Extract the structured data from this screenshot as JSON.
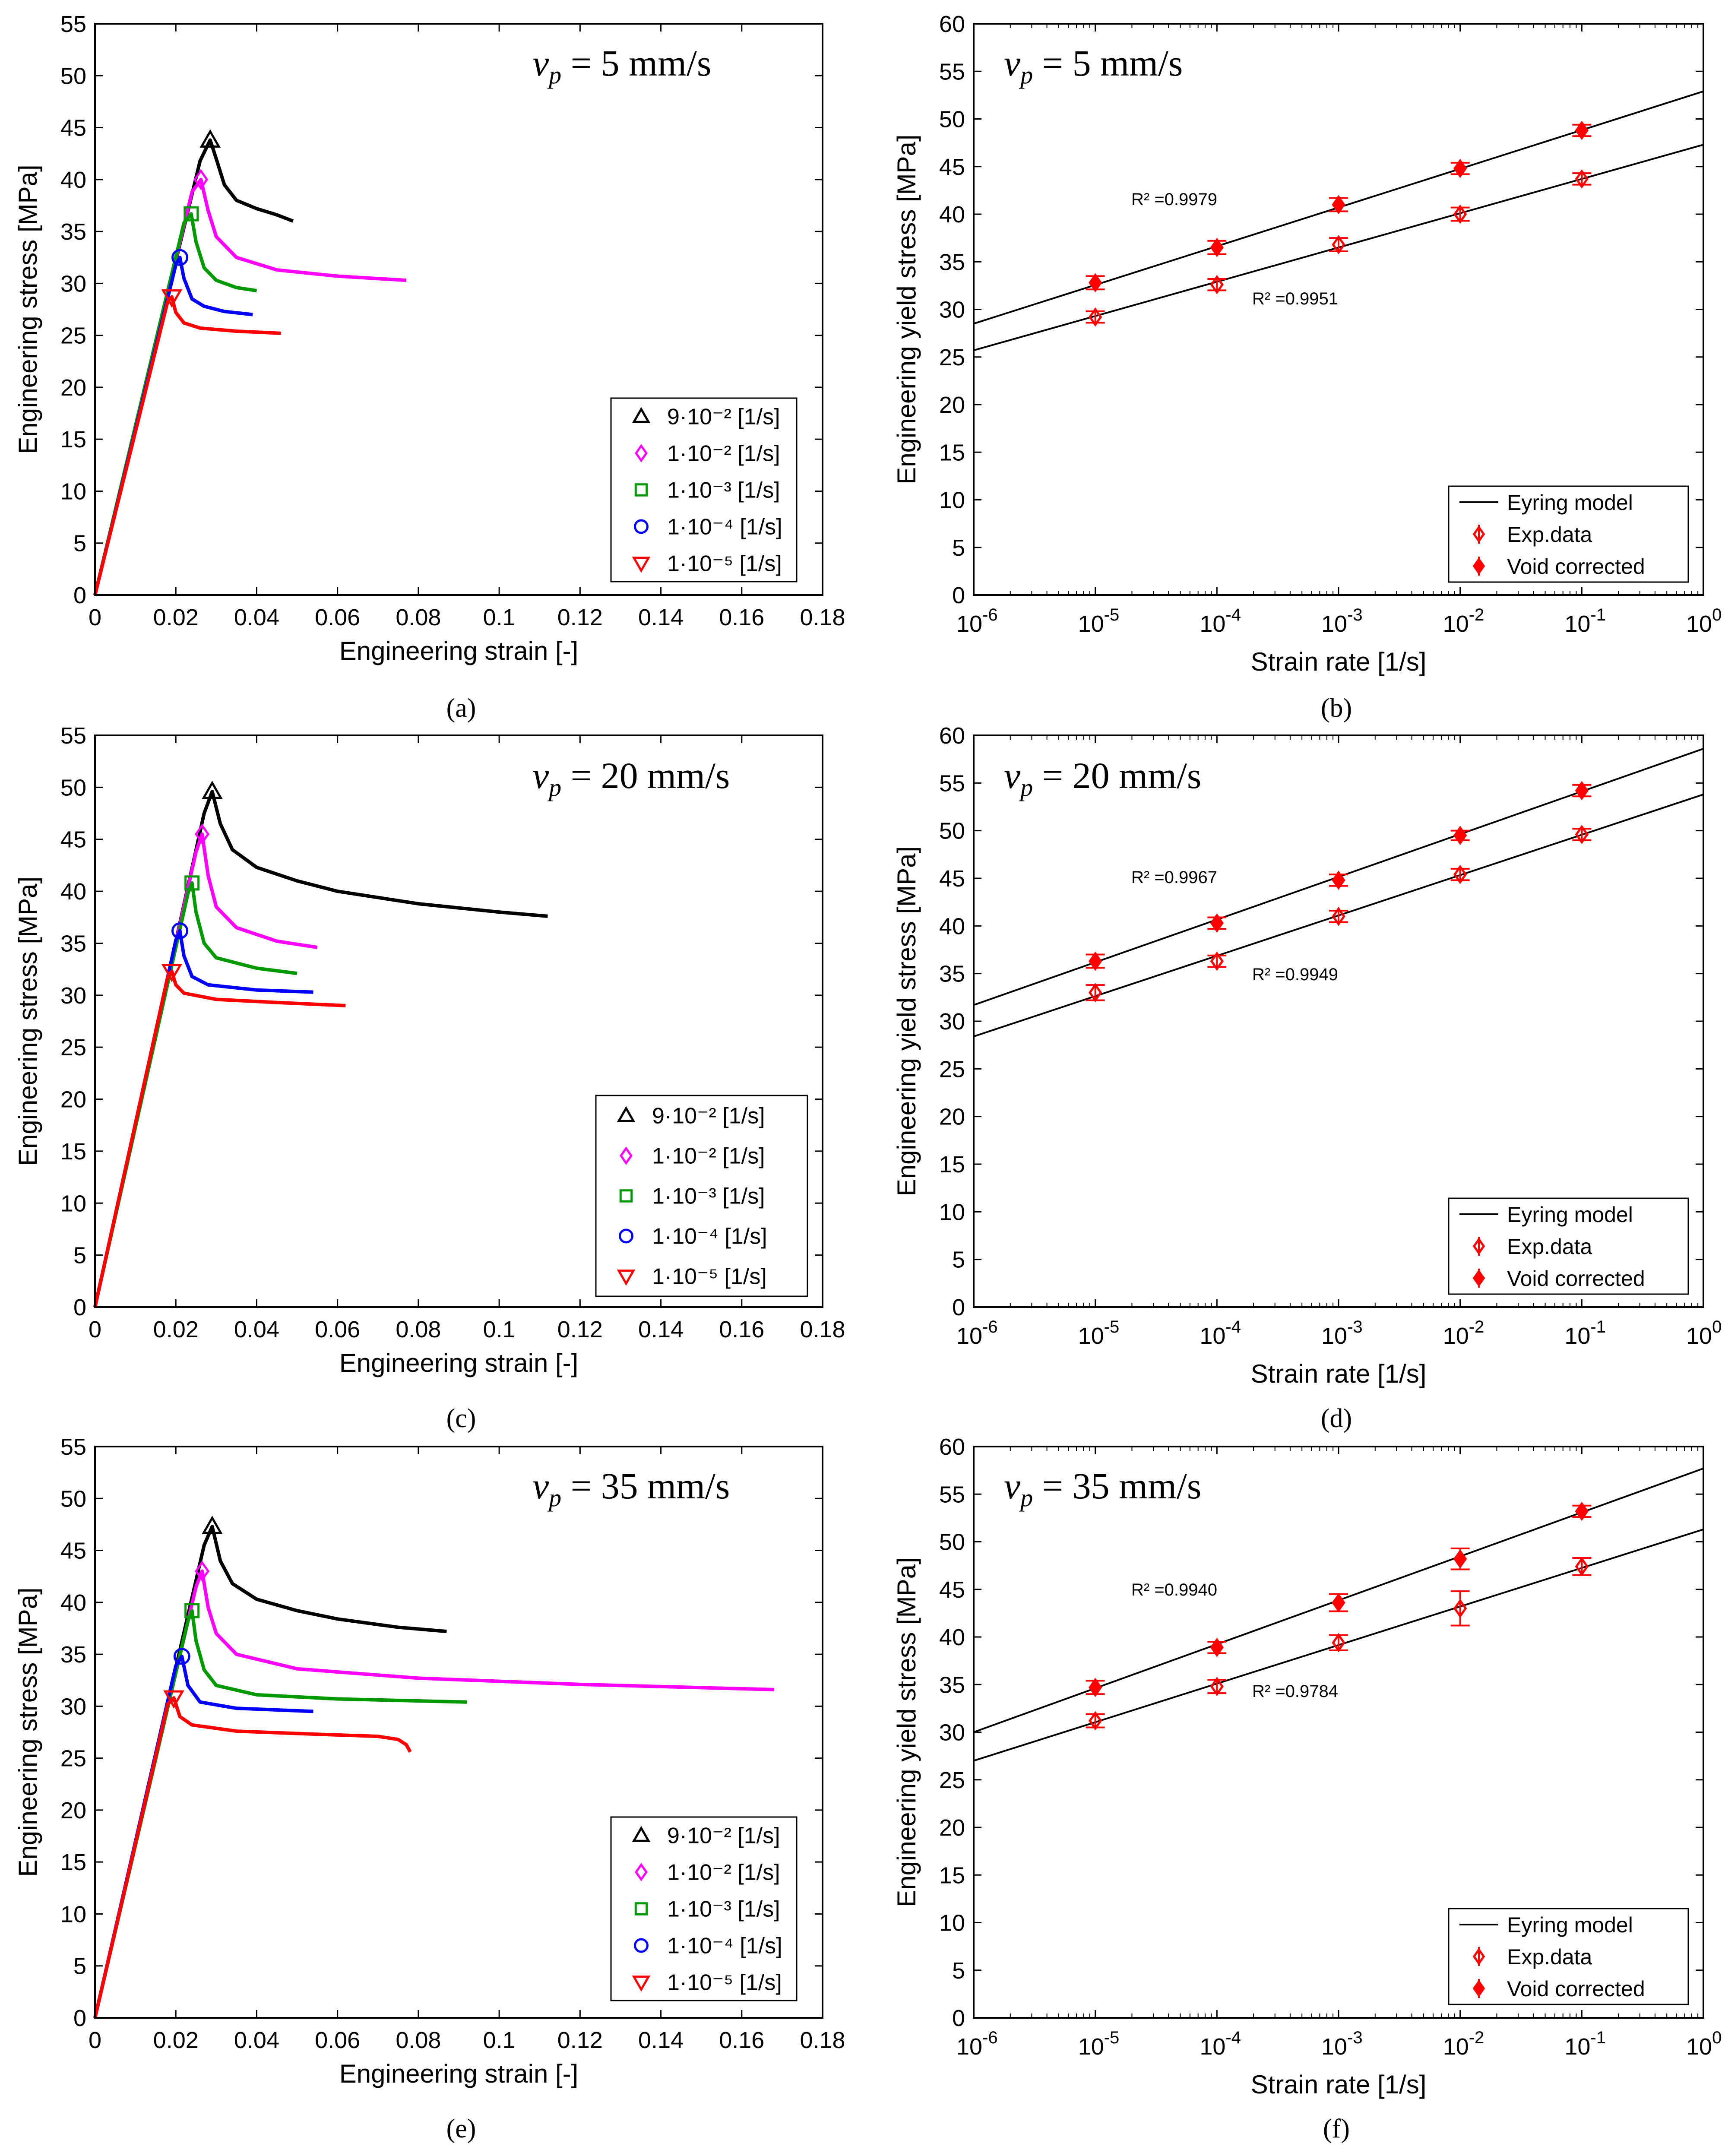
{
  "colors": {
    "black": "#000000",
    "magenta": "#ff00ff",
    "green": "#009900",
    "blue": "#0000ff",
    "red": "#ff0000"
  },
  "chart_data": [
    {
      "id": "a",
      "type": "line",
      "caption": "(a)",
      "annotation": "v_p = 5 mm/s",
      "xlabel": "Engineering strain [-]",
      "ylabel": "Engineering stress [MPa]",
      "xlim": [
        0,
        0.18
      ],
      "ylim": [
        0,
        55
      ],
      "xticks": [
        "0",
        "0.02",
        "0.04",
        "0.06",
        "0.08",
        "0.1",
        "0.12",
        "0.14",
        "0.16",
        "0.18"
      ],
      "yticks": [
        "0",
        "5",
        "10",
        "15",
        "20",
        "25",
        "30",
        "35",
        "40",
        "45",
        "50",
        "55"
      ],
      "legend": [
        "9·10⁻² [1/s]",
        "1·10⁻² [1/s]",
        "1·10⁻³ [1/s]",
        "1·10⁻⁴ [1/s]",
        "1·10⁻⁵ [1/s]"
      ],
      "series": [
        {
          "name": "9·10⁻² [1/s]",
          "color": "#000000",
          "marker": "triangle-up",
          "peak": [
            0.0285,
            43.8
          ],
          "curve": [
            [
              0,
              0
            ],
            [
              0.026,
              41.8
            ],
            [
              0.0285,
              43.8
            ],
            [
              0.03,
              42.0
            ],
            [
              0.032,
              39.5
            ],
            [
              0.035,
              38.0
            ],
            [
              0.04,
              37.2
            ],
            [
              0.045,
              36.6
            ],
            [
              0.049,
              36.0
            ]
          ]
        },
        {
          "name": "1·10⁻² [1/s]",
          "color": "#ff00ff",
          "marker": "diamond",
          "peak": [
            0.0262,
            40.0
          ],
          "curve": [
            [
              0,
              0
            ],
            [
              0.024,
              38.8
            ],
            [
              0.0262,
              40.0
            ],
            [
              0.028,
              37.0
            ],
            [
              0.03,
              34.5
            ],
            [
              0.035,
              32.5
            ],
            [
              0.045,
              31.3
            ],
            [
              0.06,
              30.7
            ],
            [
              0.077,
              30.3
            ]
          ]
        },
        {
          "name": "1·10⁻³ [1/s]",
          "color": "#009900",
          "marker": "square",
          "peak": [
            0.0238,
            36.7
          ],
          "curve": [
            [
              0,
              0
            ],
            [
              0.022,
              35.8
            ],
            [
              0.0238,
              36.7
            ],
            [
              0.025,
              34.0
            ],
            [
              0.027,
              31.5
            ],
            [
              0.03,
              30.3
            ],
            [
              0.035,
              29.6
            ],
            [
              0.04,
              29.3
            ]
          ]
        },
        {
          "name": "1·10⁻⁴ [1/s]",
          "color": "#0000ff",
          "marker": "circle",
          "peak": [
            0.021,
            32.5
          ],
          "curve": [
            [
              0,
              0
            ],
            [
              0.02,
              31.8
            ],
            [
              0.021,
              32.5
            ],
            [
              0.022,
              30.5
            ],
            [
              0.024,
              28.5
            ],
            [
              0.027,
              27.8
            ],
            [
              0.032,
              27.3
            ],
            [
              0.039,
              27.0
            ]
          ]
        },
        {
          "name": "1·10⁻⁵ [1/s]",
          "color": "#ff0000",
          "marker": "triangle-down",
          "peak": [
            0.019,
            28.7
          ],
          "curve": [
            [
              0,
              0
            ],
            [
              0.018,
              28.3
            ],
            [
              0.019,
              28.7
            ],
            [
              0.02,
              27.2
            ],
            [
              0.022,
              26.2
            ],
            [
              0.026,
              25.7
            ],
            [
              0.035,
              25.4
            ],
            [
              0.046,
              25.2
            ]
          ]
        }
      ]
    },
    {
      "id": "b",
      "type": "scatter",
      "caption": "(b)",
      "scale": "log",
      "annotation": "v_p = 5 mm/s",
      "xlabel": "Strain rate [1/s]",
      "ylabel": "Engineering yield stress [MPa]",
      "xlim": [
        -6,
        0
      ],
      "ylim": [
        0,
        60
      ],
      "xtick_exponents": [
        "-6",
        "-5",
        "-4",
        "-3",
        "-2",
        "-1",
        "0"
      ],
      "yticks": [
        "0",
        "5",
        "10",
        "15",
        "20",
        "25",
        "30",
        "35",
        "40",
        "45",
        "50",
        "55",
        "60"
      ],
      "legend": [
        "Eyring model",
        "Exp.data",
        "Void corrected"
      ],
      "r2_void": "R² =0.9979",
      "r2_exp": "R² =0.9951",
      "rates": [
        -5,
        -4,
        -3,
        -2,
        -1
      ],
      "void_values": [
        32.8,
        36.5,
        41.0,
        44.8,
        48.8
      ],
      "void_err": [
        0.7,
        0.7,
        0.7,
        0.6,
        0.6
      ],
      "exp_values": [
        29.2,
        32.6,
        36.8,
        40.0,
        43.7
      ],
      "exp_err": [
        0.6,
        0.6,
        0.7,
        0.7,
        0.6
      ],
      "fit_void": [
        28.5,
        52.9
      ],
      "fit_exp": [
        25.7,
        47.3
      ]
    },
    {
      "id": "c",
      "type": "line",
      "caption": "(c)",
      "annotation": "v_p = 20 mm/s",
      "xlabel": "Engineering strain [-]",
      "ylabel": "Engineering stress [MPa]",
      "xlim": [
        0,
        0.18
      ],
      "ylim": [
        0,
        55
      ],
      "xticks": [
        "0",
        "0.02",
        "0.04",
        "0.06",
        "0.08",
        "0.1",
        "0.12",
        "0.14",
        "0.16",
        "0.18"
      ],
      "yticks": [
        "0",
        "5",
        "10",
        "15",
        "20",
        "25",
        "30",
        "35",
        "40",
        "45",
        "50",
        "55"
      ],
      "legend": [
        "9·10⁻² [1/s]",
        "1·10⁻² [1/s]",
        "1·10⁻³ [1/s]",
        "1·10⁻⁴ [1/s]",
        "1·10⁻⁵ [1/s]"
      ],
      "series": [
        {
          "name": "9·10⁻² [1/s]",
          "color": "#000000",
          "marker": "triangle-up",
          "peak": [
            0.029,
            49.6
          ],
          "curve": [
            [
              0,
              0
            ],
            [
              0.027,
              47.5
            ],
            [
              0.029,
              49.6
            ],
            [
              0.031,
              46.5
            ],
            [
              0.034,
              44.0
            ],
            [
              0.04,
              42.3
            ],
            [
              0.05,
              41.0
            ],
            [
              0.06,
              40.0
            ],
            [
              0.08,
              38.8
            ],
            [
              0.1,
              38.0
            ],
            [
              0.112,
              37.6
            ]
          ]
        },
        {
          "name": "1·10⁻² [1/s]",
          "color": "#ff00ff",
          "marker": "diamond",
          "peak": [
            0.0265,
            45.5
          ],
          "curve": [
            [
              0,
              0
            ],
            [
              0.025,
              43.8
            ],
            [
              0.0265,
              45.5
            ],
            [
              0.028,
              41.5
            ],
            [
              0.03,
              38.5
            ],
            [
              0.035,
              36.5
            ],
            [
              0.045,
              35.2
            ],
            [
              0.055,
              34.6
            ]
          ]
        },
        {
          "name": "1·10⁻³ [1/s]",
          "color": "#009900",
          "marker": "square",
          "peak": [
            0.024,
            40.8
          ],
          "curve": [
            [
              0,
              0
            ],
            [
              0.023,
              39.8
            ],
            [
              0.024,
              40.8
            ],
            [
              0.025,
              38.0
            ],
            [
              0.027,
              35.0
            ],
            [
              0.03,
              33.6
            ],
            [
              0.04,
              32.6
            ],
            [
              0.05,
              32.1
            ]
          ]
        },
        {
          "name": "1·10⁻⁴ [1/s]",
          "color": "#0000ff",
          "marker": "circle",
          "peak": [
            0.021,
            36.2
          ],
          "curve": [
            [
              0,
              0
            ],
            [
              0.02,
              35.3
            ],
            [
              0.021,
              36.2
            ],
            [
              0.022,
              33.8
            ],
            [
              0.024,
              31.8
            ],
            [
              0.028,
              31.0
            ],
            [
              0.04,
              30.5
            ],
            [
              0.054,
              30.3
            ]
          ]
        },
        {
          "name": "1·10⁻⁵ [1/s]",
          "color": "#ff0000",
          "marker": "triangle-down",
          "peak": [
            0.019,
            32.3
          ],
          "curve": [
            [
              0,
              0
            ],
            [
              0.018,
              31.8
            ],
            [
              0.019,
              32.3
            ],
            [
              0.02,
              31.0
            ],
            [
              0.022,
              30.2
            ],
            [
              0.03,
              29.6
            ],
            [
              0.045,
              29.3
            ],
            [
              0.062,
              29.0
            ]
          ]
        }
      ]
    },
    {
      "id": "d",
      "type": "scatter",
      "caption": "(d)",
      "scale": "log",
      "annotation": "v_p = 20 mm/s",
      "xlabel": "Strain rate [1/s]",
      "ylabel": "Engineering yield stress [MPa]",
      "xlim": [
        -6,
        0
      ],
      "ylim": [
        0,
        60
      ],
      "xtick_exponents": [
        "-6",
        "-5",
        "-4",
        "-3",
        "-2",
        "-1",
        "0"
      ],
      "yticks": [
        "0",
        "5",
        "10",
        "15",
        "20",
        "25",
        "30",
        "35",
        "40",
        "45",
        "50",
        "55",
        "60"
      ],
      "legend": [
        "Eyring model",
        "Exp.data",
        "Void corrected"
      ],
      "r2_void": "R² =0.9967",
      "r2_exp": "R² =0.9949",
      "rates": [
        -5,
        -4,
        -3,
        -2,
        -1
      ],
      "void_values": [
        36.3,
        40.3,
        44.8,
        49.5,
        54.2
      ],
      "void_err": [
        0.7,
        0.6,
        0.6,
        0.5,
        0.6
      ],
      "exp_values": [
        33.0,
        36.3,
        41.0,
        45.4,
        49.6
      ],
      "exp_err": [
        0.8,
        0.6,
        0.6,
        0.6,
        0.6
      ],
      "fit_void": [
        31.7,
        58.6
      ],
      "fit_exp": [
        28.4,
        53.8
      ]
    },
    {
      "id": "e",
      "type": "line",
      "caption": "(e)",
      "annotation": "v_p = 35 mm/s",
      "xlabel": "Engineering strain [-]",
      "ylabel": "Engineering stress [MPa]",
      "xlim": [
        0,
        0.18
      ],
      "ylim": [
        0,
        55
      ],
      "xticks": [
        "0",
        "0.02",
        "0.04",
        "0.06",
        "0.08",
        "0.1",
        "0.12",
        "0.14",
        "0.16",
        "0.18"
      ],
      "yticks": [
        "0",
        "5",
        "10",
        "15",
        "20",
        "25",
        "30",
        "35",
        "40",
        "45",
        "50",
        "55"
      ],
      "legend": [
        "9·10⁻² [1/s]",
        "1·10⁻² [1/s]",
        "1·10⁻³ [1/s]",
        "1·10⁻⁴ [1/s]",
        "1·10⁻⁵ [1/s]"
      ],
      "series": [
        {
          "name": "9·10⁻² [1/s]",
          "color": "#000000",
          "marker": "triangle-up",
          "peak": [
            0.029,
            47.3
          ],
          "curve": [
            [
              0,
              0
            ],
            [
              0.027,
              45.5
            ],
            [
              0.029,
              47.3
            ],
            [
              0.031,
              44.0
            ],
            [
              0.034,
              41.8
            ],
            [
              0.04,
              40.3
            ],
            [
              0.05,
              39.2
            ],
            [
              0.06,
              38.4
            ],
            [
              0.075,
              37.6
            ],
            [
              0.087,
              37.2
            ]
          ]
        },
        {
          "name": "1·10⁻² [1/s]",
          "color": "#ff00ff",
          "marker": "diamond",
          "peak": [
            0.0265,
            43.0
          ],
          "curve": [
            [
              0,
              0
            ],
            [
              0.025,
              41.5
            ],
            [
              0.0265,
              43.0
            ],
            [
              0.028,
              39.5
            ],
            [
              0.03,
              37.0
            ],
            [
              0.035,
              35.0
            ],
            [
              0.05,
              33.6
            ],
            [
              0.08,
              32.7
            ],
            [
              0.12,
              32.1
            ],
            [
              0.168,
              31.6
            ]
          ]
        },
        {
          "name": "1·10⁻³ [1/s]",
          "color": "#009900",
          "marker": "square",
          "peak": [
            0.024,
            39.2
          ],
          "curve": [
            [
              0,
              0
            ],
            [
              0.023,
              38.2
            ],
            [
              0.024,
              39.2
            ],
            [
              0.025,
              36.3
            ],
            [
              0.027,
              33.5
            ],
            [
              0.03,
              32.0
            ],
            [
              0.04,
              31.1
            ],
            [
              0.06,
              30.7
            ],
            [
              0.092,
              30.4
            ]
          ]
        },
        {
          "name": "1·10⁻⁴ [1/s]",
          "color": "#0000ff",
          "marker": "circle",
          "peak": [
            0.0215,
            34.8
          ],
          "curve": [
            [
              0,
              0
            ],
            [
              0.02,
              33.9
            ],
            [
              0.0215,
              34.8
            ],
            [
              0.023,
              32.0
            ],
            [
              0.026,
              30.4
            ],
            [
              0.035,
              29.8
            ],
            [
              0.054,
              29.5
            ]
          ]
        },
        {
          "name": "1·10⁻⁵ [1/s]",
          "color": "#ff0000",
          "marker": "triangle-down",
          "peak": [
            0.0195,
            30.8
          ],
          "curve": [
            [
              0,
              0
            ],
            [
              0.018,
              30.2
            ],
            [
              0.0195,
              30.8
            ],
            [
              0.021,
              29.0
            ],
            [
              0.024,
              28.2
            ],
            [
              0.035,
              27.6
            ],
            [
              0.055,
              27.3
            ],
            [
              0.07,
              27.1
            ],
            [
              0.075,
              26.8
            ],
            [
              0.077,
              26.3
            ],
            [
              0.078,
              25.6
            ]
          ]
        }
      ]
    },
    {
      "id": "f",
      "type": "scatter",
      "caption": "(f)",
      "scale": "log",
      "annotation": "v_p = 35 mm/s",
      "xlabel": "Strain rate [1/s]",
      "ylabel": "Engineering yield stress [MPa]",
      "xlim": [
        -6,
        0
      ],
      "ylim": [
        0,
        60
      ],
      "xtick_exponents": [
        "-6",
        "-5",
        "-4",
        "-3",
        "-2",
        "-1",
        "0"
      ],
      "yticks": [
        "0",
        "5",
        "10",
        "15",
        "20",
        "25",
        "30",
        "35",
        "40",
        "45",
        "50",
        "55",
        "60"
      ],
      "legend": [
        "Eyring model",
        "Exp.data",
        "Void corrected"
      ],
      "r2_void": "R² =0.9940",
      "r2_exp": "R² =0.9784",
      "rates": [
        -5,
        -4,
        -3,
        -2,
        -1
      ],
      "void_values": [
        34.7,
        38.9,
        43.6,
        48.2,
        53.2
      ],
      "void_err": [
        0.7,
        0.6,
        0.9,
        1.1,
        0.6
      ],
      "exp_values": [
        31.2,
        34.8,
        39.4,
        43.0,
        47.4
      ],
      "exp_err": [
        0.7,
        0.7,
        0.8,
        1.8,
        0.9
      ],
      "fit_void": [
        30.0,
        57.7
      ],
      "fit_exp": [
        27.0,
        51.3
      ]
    }
  ]
}
